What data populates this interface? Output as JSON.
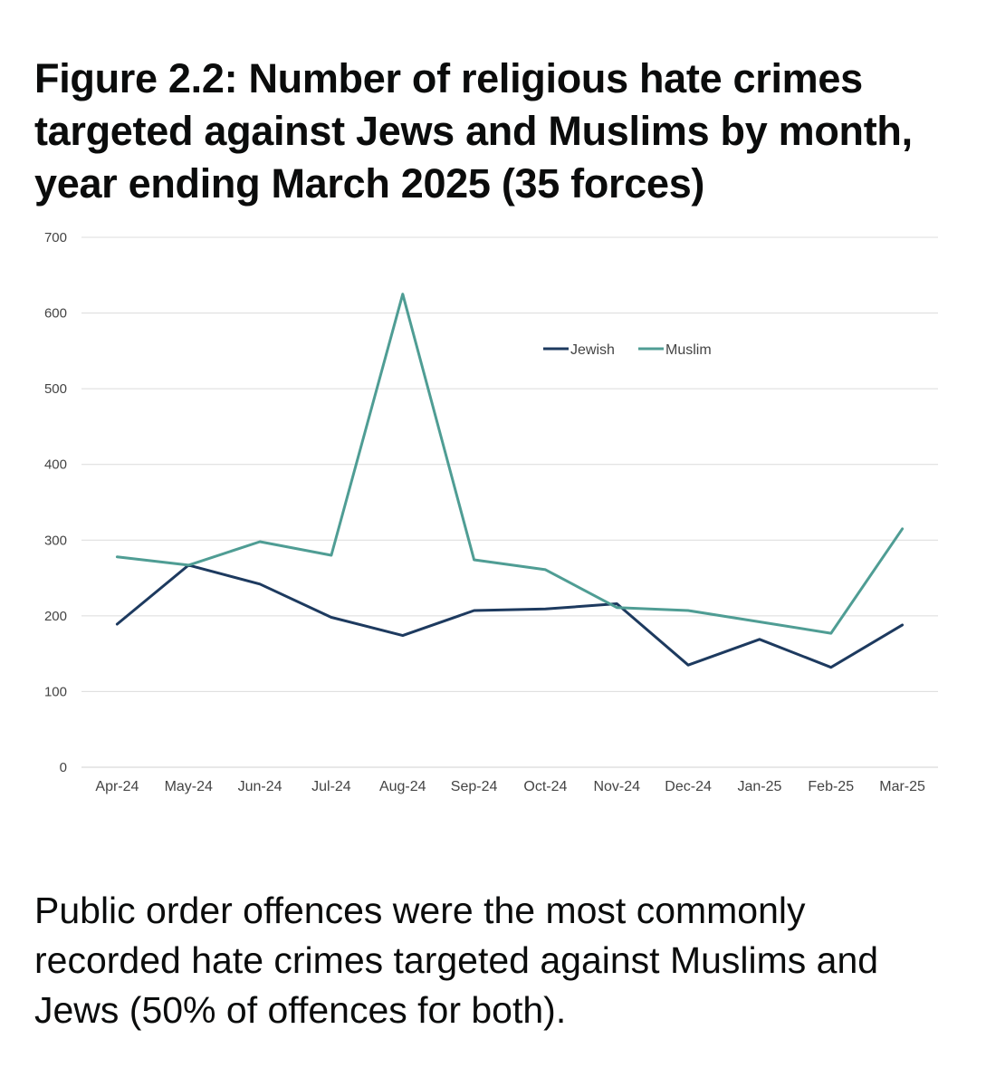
{
  "title": "Figure 2.2: Number of religious hate crimes targeted against Jews and Muslims by month, year ending March 2025 (35 forces)",
  "chart_data": {
    "type": "line",
    "title": "Figure 2.2: Number of religious hate crimes targeted against Jews and Muslims by month, year ending March 2025 (35 forces)",
    "categories": [
      "Apr-24",
      "May-24",
      "Jun-24",
      "Jul-24",
      "Aug-24",
      "Sep-24",
      "Oct-24",
      "Nov-24",
      "Dec-24",
      "Jan-25",
      "Feb-25",
      "Mar-25"
    ],
    "yticks": [
      0,
      100,
      200,
      300,
      400,
      500,
      600,
      700
    ],
    "ylim": [
      0,
      700
    ],
    "grid": true,
    "legend_position": "top-center",
    "series": [
      {
        "name": "Jewish",
        "color": "#1d3a5f",
        "values": [
          189,
          267,
          242,
          198,
          174,
          207,
          209,
          216,
          135,
          169,
          132,
          188
        ]
      },
      {
        "name": "Muslim",
        "color": "#4f9d94",
        "values": [
          278,
          267,
          298,
          280,
          625,
          274,
          261,
          211,
          207,
          192,
          177,
          315
        ]
      }
    ]
  },
  "body_text": "Public order offences were the most commonly recorded hate crimes targeted against Muslims and Jews (50% of offences for both)."
}
